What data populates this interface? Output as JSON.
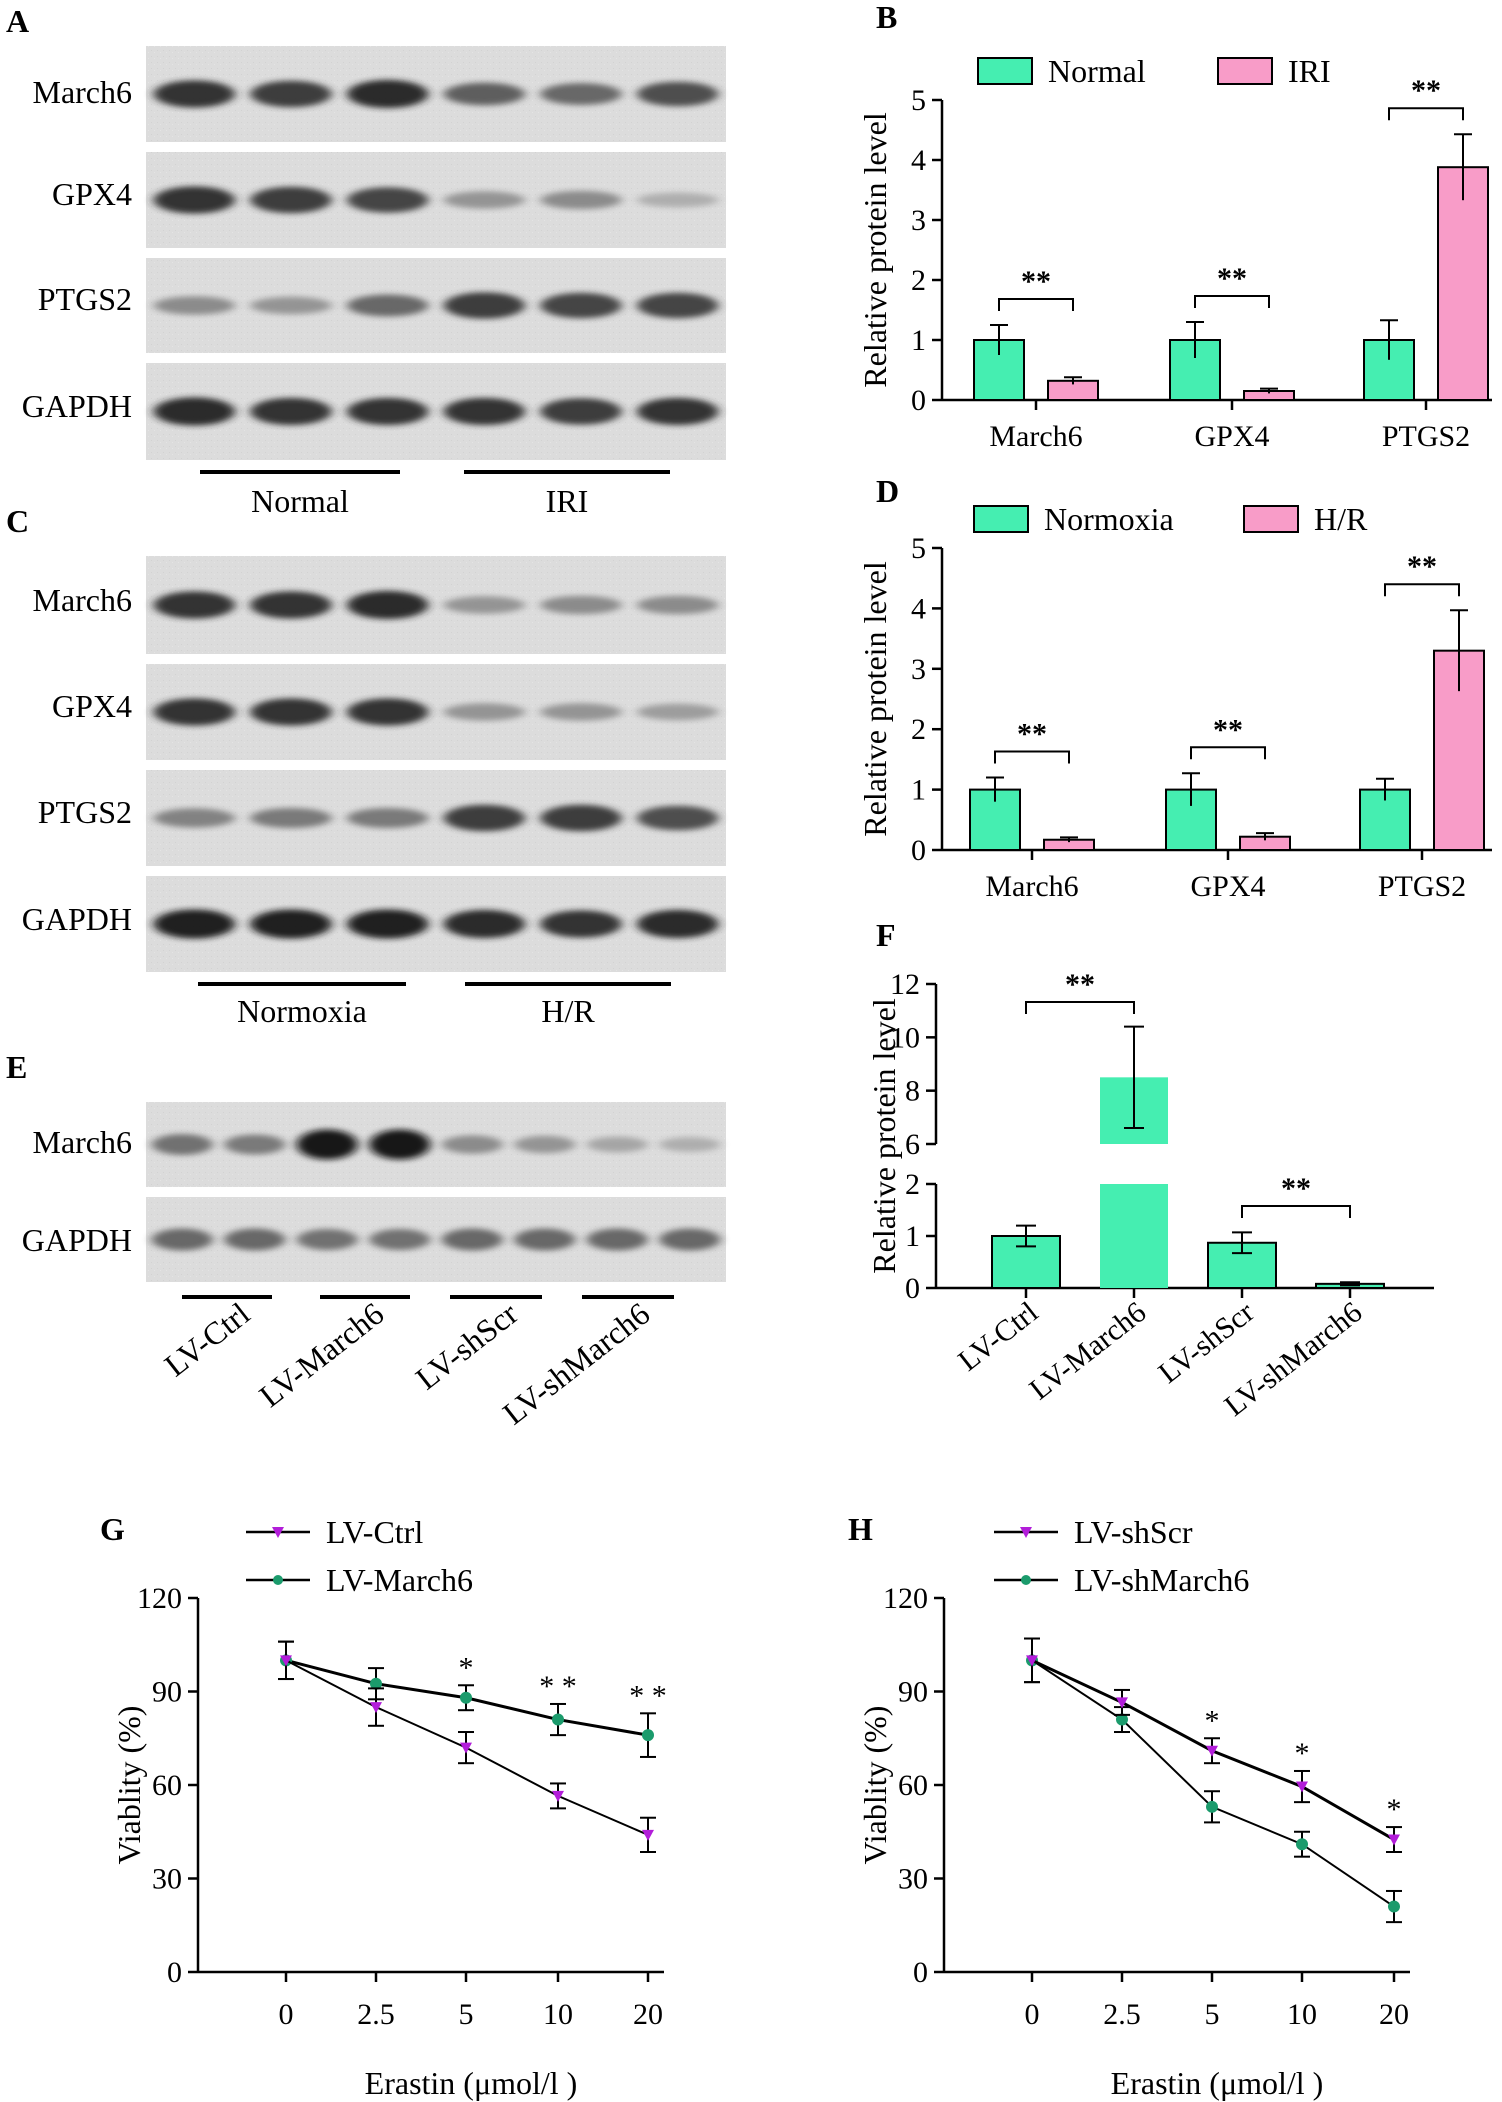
{
  "panels": {
    "A": {
      "letter": "A",
      "rows": [
        "March6",
        "GPX4",
        "PTGS2",
        "GAPDH"
      ],
      "groups": [
        "Normal",
        "IRI"
      ],
      "band_intensity": [
        [
          0.85,
          0.8,
          0.9,
          0.6,
          0.55,
          0.7
        ],
        [
          0.85,
          0.8,
          0.75,
          0.3,
          0.35,
          0.15
        ],
        [
          0.35,
          0.3,
          0.55,
          0.8,
          0.75,
          0.75
        ],
        [
          0.9,
          0.85,
          0.85,
          0.85,
          0.8,
          0.85
        ]
      ]
    },
    "C": {
      "letter": "C",
      "rows": [
        "March6",
        "GPX4",
        "PTGS2",
        "GAPDH"
      ],
      "groups": [
        "Normoxia",
        "H/R"
      ],
      "band_intensity": [
        [
          0.85,
          0.85,
          0.9,
          0.3,
          0.35,
          0.35
        ],
        [
          0.85,
          0.85,
          0.85,
          0.3,
          0.3,
          0.25
        ],
        [
          0.4,
          0.45,
          0.45,
          0.8,
          0.8,
          0.7
        ],
        [
          0.95,
          0.95,
          0.95,
          0.9,
          0.85,
          0.9
        ]
      ]
    },
    "E": {
      "letter": "E",
      "rows": [
        "March6",
        "GAPDH"
      ],
      "groups": [
        "LV-Ctrl",
        "LV-March6",
        "LV-shScr",
        "LV-shMarch6"
      ],
      "band_intensity": [
        [
          0.5,
          0.45,
          1.0,
          1.0,
          0.35,
          0.3,
          0.2,
          0.15
        ],
        [
          0.55,
          0.55,
          0.5,
          0.5,
          0.55,
          0.55,
          0.55,
          0.55
        ]
      ]
    },
    "B": {
      "letter": "B"
    },
    "D": {
      "letter": "D"
    },
    "F": {
      "letter": "F"
    },
    "G": {
      "letter": "G"
    },
    "H": {
      "letter": "H"
    }
  },
  "colors": {
    "green": "#45eeb1",
    "pink": "#f89cc8",
    "purple": "#b21dd9",
    "teal": "#1b9b6c"
  },
  "chart_data": [
    {
      "id": "B",
      "type": "bar",
      "title": "",
      "ylabel": "Relative protein level",
      "ylim": [
        0,
        5
      ],
      "yticks": [
        "0",
        "1",
        "2",
        "3",
        "4",
        "5"
      ],
      "categories": [
        "March6",
        "GPX4",
        "PTGS2"
      ],
      "series": [
        {
          "name": "Normal",
          "values": [
            1.0,
            1.0,
            1.0
          ],
          "err": [
            0.25,
            0.3,
            0.33
          ]
        },
        {
          "name": "IRI",
          "values": [
            0.32,
            0.15,
            3.88
          ],
          "err": [
            0.06,
            0.04,
            0.55
          ]
        }
      ],
      "significance": [
        "**",
        "**",
        "**"
      ]
    },
    {
      "id": "D",
      "type": "bar",
      "title": "",
      "ylabel": "Relative protein level",
      "ylim": [
        0,
        5
      ],
      "yticks": [
        "0",
        "1",
        "2",
        "3",
        "4",
        "5"
      ],
      "categories": [
        "March6",
        "GPX4",
        "PTGS2"
      ],
      "series": [
        {
          "name": "Normoxia",
          "values": [
            1.0,
            1.0,
            1.0
          ],
          "err": [
            0.2,
            0.27,
            0.18
          ]
        },
        {
          "name": "H/R",
          "values": [
            0.17,
            0.22,
            3.3
          ],
          "err": [
            0.04,
            0.06,
            0.67
          ]
        }
      ],
      "significance": [
        "**",
        "**",
        "**"
      ]
    },
    {
      "id": "F",
      "type": "bar",
      "title": "",
      "ylabel": "Relative protein level",
      "ylim": [
        0,
        12
      ],
      "ybreak": [
        2,
        6
      ],
      "yticks": [
        "0",
        "1",
        "2",
        "6",
        "8",
        "10",
        "12"
      ],
      "categories": [
        "LV-Ctrl",
        "LV-March6",
        "LV-shScr",
        "LV-shMarch6"
      ],
      "series": [
        {
          "name": "",
          "values": [
            1.0,
            8.5,
            0.87,
            0.08
          ],
          "err": [
            0.2,
            1.9,
            0.2,
            0.03
          ]
        }
      ],
      "significance": [
        "**",
        "**"
      ]
    },
    {
      "id": "G",
      "type": "line",
      "ylabel": "Viablity (%)",
      "xlabel": "Erastin (μmol/l )",
      "ylim": [
        0,
        120
      ],
      "yticks": [
        "0",
        "30",
        "60",
        "90",
        "120"
      ],
      "x": [
        "0",
        "2.5",
        "5",
        "10",
        "20"
      ],
      "series": [
        {
          "name": "LV-Ctrl",
          "values": [
            100,
            85,
            72,
            56.5,
            44
          ],
          "err": [
            6,
            6,
            5,
            4,
            5.5
          ]
        },
        {
          "name": "LV-March6",
          "values": [
            100,
            92.5,
            88,
            81,
            76
          ],
          "err": [
            6,
            5,
            4,
            5,
            7
          ]
        }
      ],
      "significance": [
        "",
        "",
        "*",
        "* *",
        "* *"
      ]
    },
    {
      "id": "H",
      "type": "line",
      "ylabel": "Viablity (%)",
      "xlabel": "Erastin (μmol/l )",
      "ylim": [
        0,
        120
      ],
      "yticks": [
        "0",
        "30",
        "60",
        "90",
        "120"
      ],
      "x": [
        "0",
        "2.5",
        "5",
        "10",
        "20"
      ],
      "series": [
        {
          "name": "LV-shScr",
          "values": [
            100,
            86.5,
            71,
            59.5,
            42.5
          ],
          "err": [
            7,
            4,
            4,
            5,
            4
          ]
        },
        {
          "name": "LV-shMarch6",
          "values": [
            100,
            81,
            53,
            41,
            21
          ],
          "err": [
            7,
            4,
            5,
            4,
            5
          ]
        }
      ],
      "significance": [
        "",
        "",
        "*",
        "*",
        "*"
      ]
    }
  ]
}
